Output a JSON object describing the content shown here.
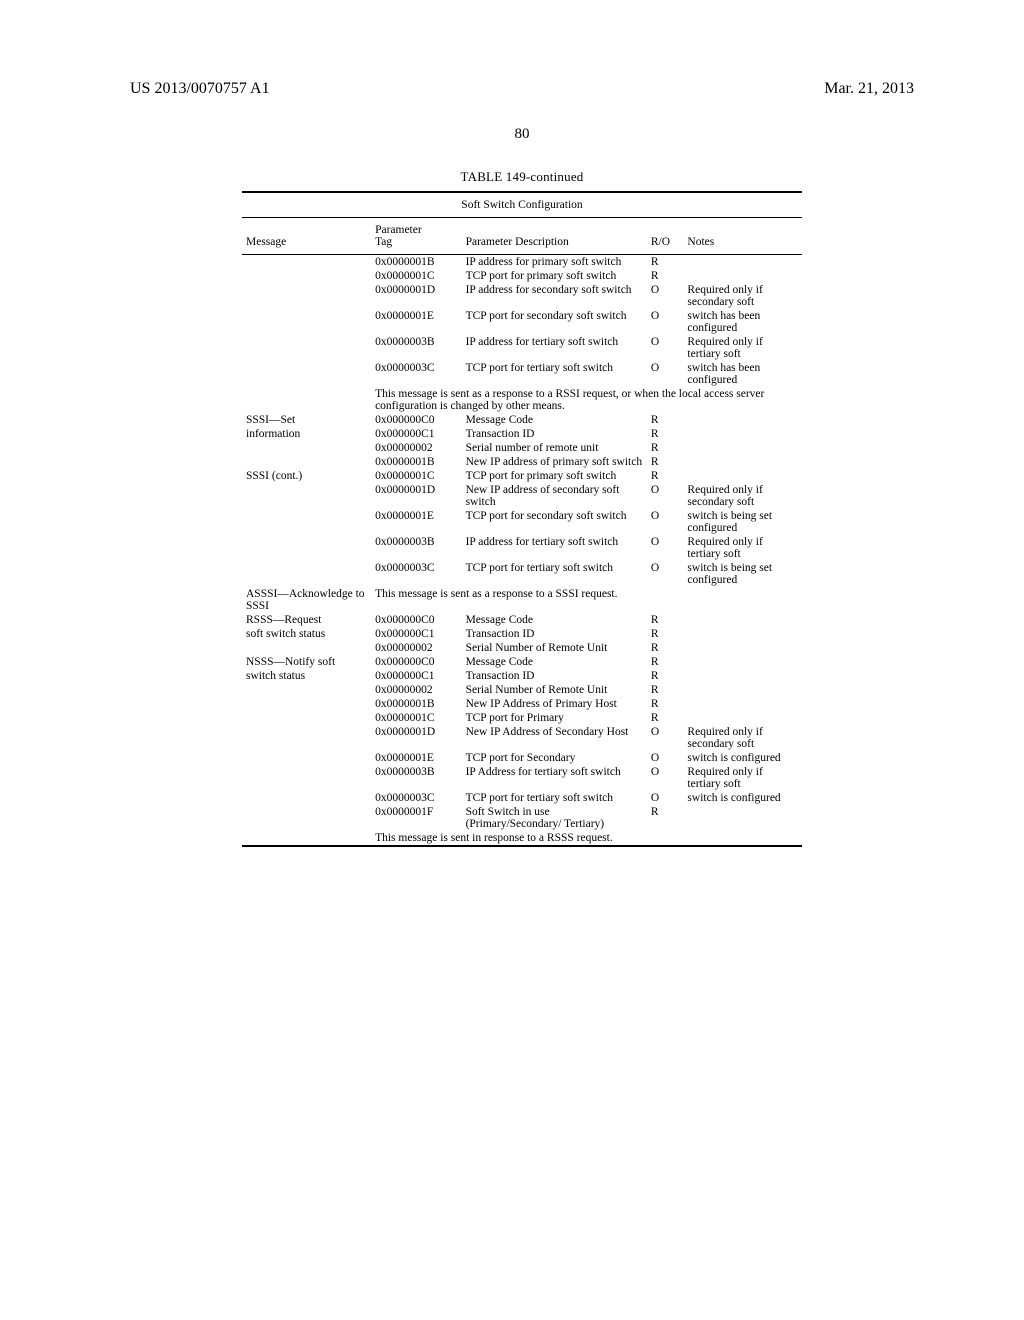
{
  "header": {
    "pub_number": "US 2013/0070757 A1",
    "date": "Mar. 21, 2013",
    "page_number": "80"
  },
  "table": {
    "caption": "TABLE 149-continued",
    "title": "Soft Switch Configuration",
    "columns": {
      "message": "Message",
      "param_tag_l1": "Parameter",
      "param_tag_l2": "Tag",
      "param_desc": "Parameter Description",
      "ro": "R/O",
      "notes": "Notes"
    },
    "rows": [
      {
        "msg": "",
        "tag": "0x0000001B",
        "desc": "IP address for primary soft switch",
        "ro": "R",
        "notes": ""
      },
      {
        "msg": "",
        "tag": "0x0000001C",
        "desc": "TCP port for primary soft switch",
        "ro": "R",
        "notes": ""
      },
      {
        "msg": "",
        "tag": "0x0000001D",
        "desc": "IP address for secondary soft switch",
        "ro": "O",
        "notes": "Required only if secondary soft"
      },
      {
        "msg": "",
        "tag": "0x0000001E",
        "desc": "TCP port for secondary soft switch",
        "ro": "O",
        "notes": "switch has been configured"
      },
      {
        "msg": "",
        "tag": "0x0000003B",
        "desc": "IP address for tertiary soft switch",
        "ro": "O",
        "notes": "Required only if tertiary soft"
      },
      {
        "msg": "",
        "tag": "0x0000003C",
        "desc": "TCP port for tertiary soft switch",
        "ro": "O",
        "notes": "switch has been configured"
      },
      {
        "msg": "",
        "tag": "",
        "desc": "This message is sent as a response to a RSSI request, or when the local access server configuration is changed by other means.",
        "ro": "",
        "notes": "",
        "span": true
      },
      {
        "msg": "SSSI—Set",
        "tag": "0x000000C0",
        "desc": "Message Code",
        "ro": "R",
        "notes": ""
      },
      {
        "msg": "information",
        "tag": "0x000000C1",
        "desc": "Transaction ID",
        "ro": "R",
        "notes": ""
      },
      {
        "msg": "",
        "tag": "0x00000002",
        "desc": "Serial number of remote unit",
        "ro": "R",
        "notes": ""
      },
      {
        "msg": "",
        "tag": "0x0000001B",
        "desc": "New IP address of primary soft switch",
        "ro": "R",
        "notes": ""
      },
      {
        "msg": "SSSI (cont.)",
        "tag": "0x0000001C",
        "desc": "TCP port for primary soft switch",
        "ro": "R",
        "notes": ""
      },
      {
        "msg": "",
        "tag": "0x0000001D",
        "desc": "New IP address of secondary soft switch",
        "ro": "O",
        "notes": "Required only if secondary soft"
      },
      {
        "msg": "",
        "tag": "0x0000001E",
        "desc": "TCP port for secondary soft switch",
        "ro": "O",
        "notes": "switch is being set configured"
      },
      {
        "msg": "",
        "tag": "0x0000003B",
        "desc": "IP address for tertiary soft switch",
        "ro": "O",
        "notes": "Required only if tertiary soft"
      },
      {
        "msg": "",
        "tag": "0x0000003C",
        "desc": "TCP port for tertiary soft switch",
        "ro": "O",
        "notes": "switch is being set configured"
      },
      {
        "msg": "ASSSI—Acknowledge to SSSI",
        "tag": "",
        "desc": "This message is sent as a response to a SSSI request.",
        "ro": "",
        "notes": "",
        "span": false,
        "msgspan": true
      },
      {
        "msg": "RSSS—Request",
        "tag": "0x000000C0",
        "desc": "Message Code",
        "ro": "R",
        "notes": ""
      },
      {
        "msg": "soft switch status",
        "tag": "0x000000C1",
        "desc": "Transaction ID",
        "ro": "R",
        "notes": ""
      },
      {
        "msg": "",
        "tag": "0x00000002",
        "desc": "Serial Number of Remote Unit",
        "ro": "R",
        "notes": ""
      },
      {
        "msg": "NSSS—Notify soft",
        "tag": "0x000000C0",
        "desc": "Message Code",
        "ro": "R",
        "notes": ""
      },
      {
        "msg": "switch status",
        "tag": "0x000000C1",
        "desc": "Transaction ID",
        "ro": "R",
        "notes": ""
      },
      {
        "msg": "",
        "tag": "0x00000002",
        "desc": "Serial Number of Remote Unit",
        "ro": "R",
        "notes": ""
      },
      {
        "msg": "",
        "tag": "0x0000001B",
        "desc": "New IP Address of Primary Host",
        "ro": "R",
        "notes": ""
      },
      {
        "msg": "",
        "tag": "0x0000001C",
        "desc": "TCP port for Primary",
        "ro": "R",
        "notes": ""
      },
      {
        "msg": "",
        "tag": "0x0000001D",
        "desc": "New IP Address of Secondary Host",
        "ro": "O",
        "notes": "Required only if secondary soft"
      },
      {
        "msg": "",
        "tag": "0x0000001E",
        "desc": "TCP port for Secondary",
        "ro": "O",
        "notes": "switch is configured"
      },
      {
        "msg": "",
        "tag": "0x0000003B",
        "desc": "IP Address for tertiary soft switch",
        "ro": "O",
        "notes": "Required only if tertiary soft"
      },
      {
        "msg": "",
        "tag": "0x0000003C",
        "desc": "TCP port for tertiary soft switch",
        "ro": "O",
        "notes": "switch is configured"
      },
      {
        "msg": "",
        "tag": "0x0000001F",
        "desc": "Soft Switch in use (Primary/Secondary/ Tertiary)",
        "ro": "R",
        "notes": ""
      },
      {
        "msg": "",
        "tag": "",
        "desc": "This message is sent in response to a RSSS request.",
        "ro": "",
        "notes": "",
        "span": true
      }
    ]
  }
}
